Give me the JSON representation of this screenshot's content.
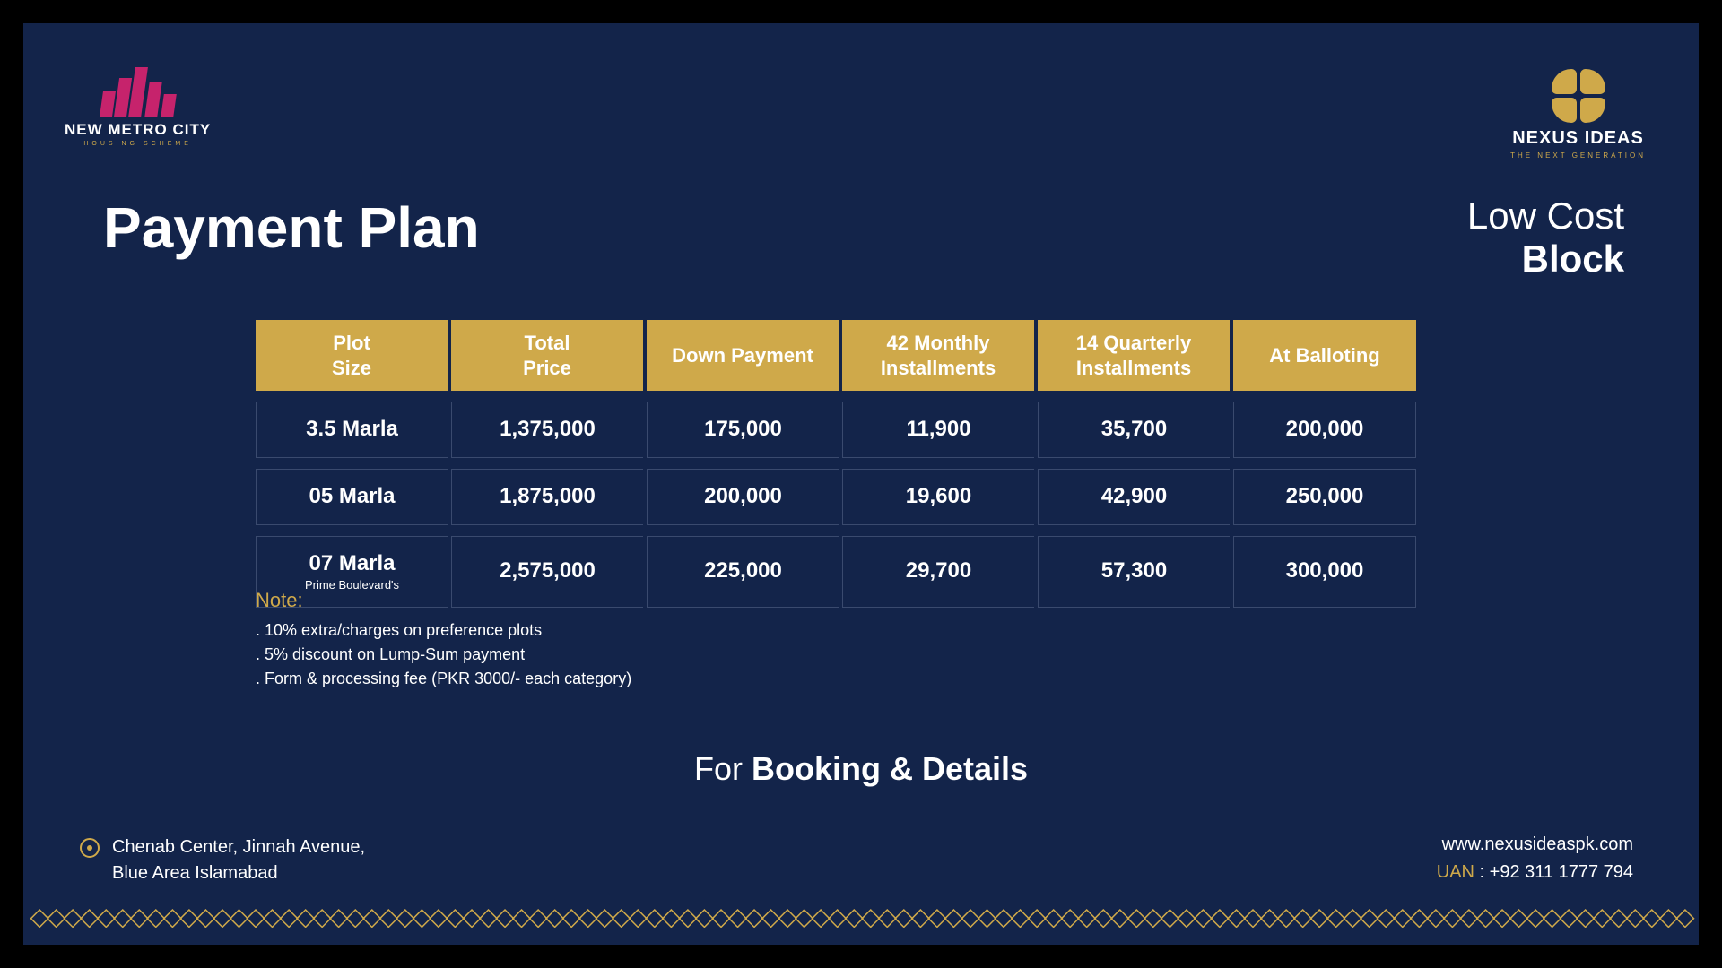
{
  "logos": {
    "left_title": "NEW METRO CITY",
    "left_sub": "HOUSING SCHEME",
    "right_title": "NEXUS IDEAS",
    "right_sub": "THE NEXT GENERATION"
  },
  "heading": "Payment Plan",
  "subheading": {
    "line1": "Low Cost",
    "line2": "Block"
  },
  "table": {
    "columns": [
      "Plot\nSize",
      "Total\nPrice",
      "Down Payment",
      "42 Monthly\nInstallments",
      "14 Quarterly\nInstallments",
      "At Balloting"
    ],
    "rows": [
      {
        "size": "3.5 Marla",
        "sub": "",
        "total": "1,375,000",
        "down": "175,000",
        "monthly": "11,900",
        "quarterly": "35,700",
        "balloting": "200,000"
      },
      {
        "size": "05 Marla",
        "sub": "",
        "total": "1,875,000",
        "down": "200,000",
        "monthly": "19,600",
        "quarterly": "42,900",
        "balloting": "250,000"
      },
      {
        "size": "07 Marla",
        "sub": "Prime Boulevard's",
        "total": "2,575,000",
        "down": "225,000",
        "monthly": "29,700",
        "quarterly": "57,300",
        "balloting": "300,000"
      }
    ],
    "header_bg": "#cfa94a",
    "cell_border": "#3a4a6e"
  },
  "note": {
    "title": "Note:",
    "lines": [
      ". 10% extra/charges on preference plots",
      ". 5% discount on Lump-Sum payment",
      ". Form & processing fee (PKR 3000/- each category)"
    ]
  },
  "booking": {
    "prefix": "For ",
    "bold": "Booking & Details"
  },
  "footer": {
    "address_line1": "Chenab Center, Jinnah Avenue,",
    "address_line2": "Blue Area Islamabad",
    "website": "www.nexusideaspk.com",
    "uan_label": "UAN",
    "uan_value": " : +92 311 1777 794"
  },
  "colors": {
    "page_bg": "#13244a",
    "accent": "#cfa94a",
    "magenta": "#c6236c",
    "text": "#ffffff"
  }
}
